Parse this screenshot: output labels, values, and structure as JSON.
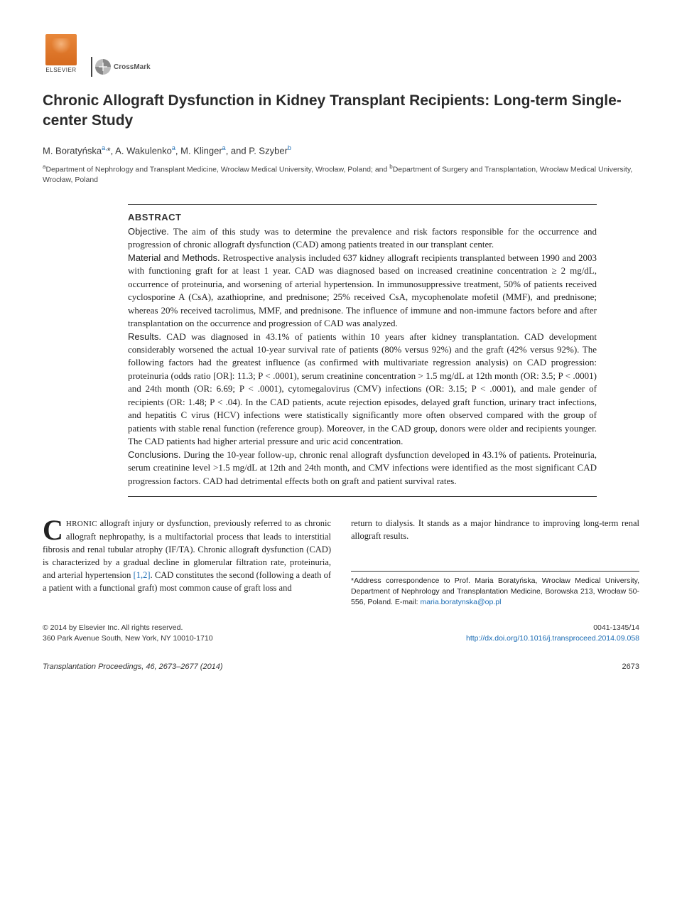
{
  "logos": {
    "elsevier": "ELSEVIER",
    "crossmark": "CrossMark"
  },
  "title": "Chronic Allograft Dysfunction in Kidney Transplant Recipients: Long-term Single-center Study",
  "authors_html": "M. Boratyńska<sup>a,</sup>*, A. Wakulenko<sup>a</sup>, M. Klinger<sup>a</sup>, and P. Szyber<sup>b</sup>",
  "affiliations_html": "<sup>a</sup>Department of Nephrology and Transplant Medicine, Wrocław Medical University, Wrocław, Poland; and <sup>b</sup>Department of Surgery and Transplantation, Wrocław Medical University, Wrocław, Poland",
  "abstract": {
    "heading": "ABSTRACT",
    "objective_label": "Objective.",
    "objective": " The aim of this study was to determine the prevalence and risk factors responsible for the occurrence and progression of chronic allograft dysfunction (CAD) among patients treated in our transplant center.",
    "methods_label": "Material and Methods.",
    "methods": " Retrospective analysis included 637 kidney allograft recipients transplanted between 1990 and 2003 with functioning graft for at least 1 year. CAD was diagnosed based on increased creatinine concentration ≥ 2 mg/dL, occurrence of proteinuria, and worsening of arterial hypertension. In immunosuppressive treatment, 50% of patients received cyclosporine A (CsA), azathioprine, and prednisone; 25% received CsA, mycophenolate mofetil (MMF), and prednisone; whereas 20% received tacrolimus, MMF, and prednisone. The influence of immune and non-immune factors before and after transplantation on the occurrence and progression of CAD was analyzed.",
    "results_label": "Results.",
    "results": " CAD was diagnosed in 43.1% of patients within 10 years after kidney transplantation. CAD development considerably worsened the actual 10-year survival rate of patients (80% versus 92%) and the graft (42% versus 92%). The following factors had the greatest influence (as confirmed with multivariate regression analysis) on CAD progression: proteinuria (odds ratio [OR]: 11.3; P < .0001), serum creatinine concentration > 1.5 mg/dL at 12th month (OR: 3.5; P < .0001) and 24th month (OR: 6.69; P < .0001), cytomegalovirus (CMV) infections (OR: 3.15; P < .0001), and male gender of recipients (OR: 1.48; P < .04). In the CAD patients, acute rejection episodes, delayed graft function, urinary tract infections, and hepatitis C virus (HCV) infections were statistically significantly more often observed compared with the group of patients with stable renal function (reference group). Moreover, in the CAD group, donors were older and recipients younger. The CAD patients had higher arterial pressure and uric acid concentration.",
    "conclusions_label": "Conclusions.",
    "conclusions": " During the 10-year follow-up, chronic renal allograft dysfunction developed in 43.1% of patients. Proteinuria, serum creatinine level >1.5 mg/dL at 12th and 24th month, and CMV infections were identified as the most significant CAD progression factors. CAD had detrimental effects both on graft and patient survival rates."
  },
  "body": {
    "dropcap": "C",
    "smallcaps": "HRONIC",
    "left_para": " allograft injury or dysfunction, previously referred to as chronic allograft nephropathy, is a multifactorial process that leads to interstitial fibrosis and renal tubular atrophy (IF/TA). Chronic allograft dysfunction (CAD) is characterized by a gradual decline in glomerular filtration rate, proteinuria, and arterial hypertension ",
    "ref": "[1,2]",
    "left_para_2": ". CAD constitutes the second (following a death of a patient with a functional graft) most common cause of graft loss and",
    "right_para": "return to dialysis. It stands as a major hindrance to improving long-term renal allograft results."
  },
  "correspondence": {
    "text": "*Address correspondence to Prof. Maria Boratyńska, Wrocław Medical University, Department of Nephrology and Transplantation Medicine, Borowska 213, Wrocław 50-556, Poland. E-mail: ",
    "email": "maria.boratynska@op.pl"
  },
  "footer": {
    "copyright_line1": "© 2014 by Elsevier Inc. All rights reserved.",
    "copyright_line2": "360 Park Avenue South, New York, NY 10010-1710",
    "issn": "0041-1345/14",
    "doi": "http://dx.doi.org/10.1016/j.transproceed.2014.09.058"
  },
  "journal": {
    "citation": "Transplantation Proceedings, 46, 2673–2677 (2014)",
    "page": "2673"
  },
  "colors": {
    "link": "#1a6bb3",
    "text": "#333333",
    "rule": "#333333"
  }
}
